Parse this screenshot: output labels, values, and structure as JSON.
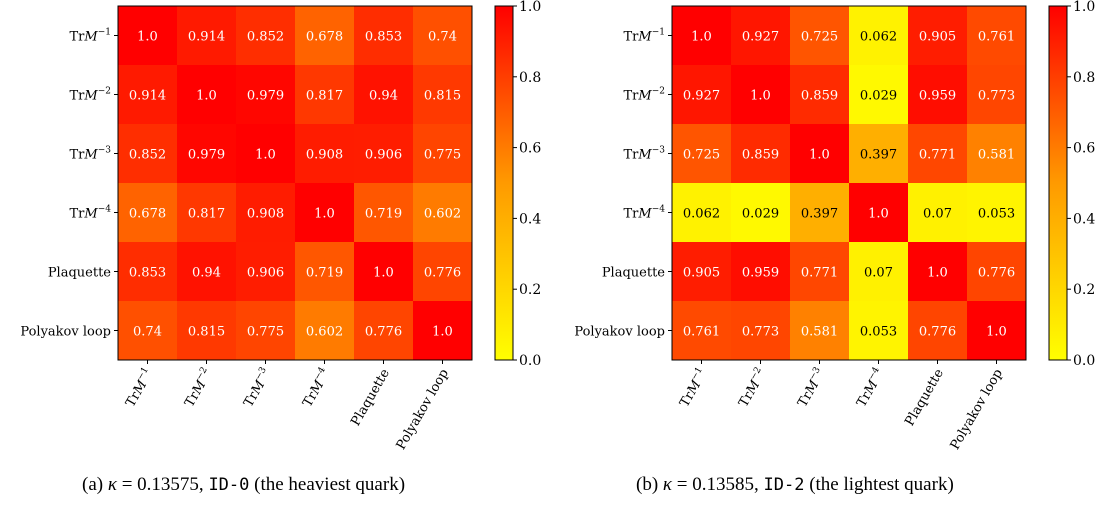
{
  "colors": {
    "low": "#ffff00",
    "mid": "#ff9a00",
    "high": "#ff0000"
  },
  "chart_data": [
    {
      "type": "heatmap",
      "labels": [
        "TrM^-1",
        "TrM^-2",
        "TrM^-3",
        "TrM^-4",
        "Plaquette",
        "Polyakov loop"
      ],
      "values": [
        [
          1.0,
          0.914,
          0.852,
          0.678,
          0.853,
          0.74
        ],
        [
          0.914,
          1.0,
          0.979,
          0.817,
          0.94,
          0.815
        ],
        [
          0.852,
          0.979,
          1.0,
          0.908,
          0.906,
          0.775
        ],
        [
          0.678,
          0.817,
          0.908,
          1.0,
          0.719,
          0.602
        ],
        [
          0.853,
          0.94,
          0.906,
          0.719,
          1.0,
          0.776
        ],
        [
          0.74,
          0.815,
          0.775,
          0.602,
          0.776,
          1.0
        ]
      ],
      "cell_labels": [
        [
          "1.0",
          "0.914",
          "0.852",
          "0.678",
          "0.853",
          "0.74"
        ],
        [
          "0.914",
          "1.0",
          "0.979",
          "0.817",
          "0.94",
          "0.815"
        ],
        [
          "0.852",
          "0.979",
          "1.0",
          "0.908",
          "0.906",
          "0.775"
        ],
        [
          "0.678",
          "0.817",
          "0.908",
          "1.0",
          "0.719",
          "0.602"
        ],
        [
          "0.853",
          "0.94",
          "0.906",
          "0.719",
          "1.0",
          "0.776"
        ],
        [
          "0.74",
          "0.815",
          "0.775",
          "0.602",
          "0.776",
          "1.0"
        ]
      ],
      "colorbar": {
        "range": [
          0.0,
          1.0
        ],
        "ticks": [
          "0.0",
          "0.2",
          "0.4",
          "0.6",
          "0.8",
          "1.0"
        ]
      },
      "caption": {
        "prefix": "(a)",
        "kappa_value": "= 0.13575,",
        "id": "ID-0",
        "suffix": "(the heaviest quark)"
      }
    },
    {
      "type": "heatmap",
      "labels": [
        "TrM^-1",
        "TrM^-2",
        "TrM^-3",
        "TrM^-4",
        "Plaquette",
        "Polyakov loop"
      ],
      "values": [
        [
          1.0,
          0.927,
          0.725,
          0.062,
          0.905,
          0.761
        ],
        [
          0.927,
          1.0,
          0.859,
          0.029,
          0.959,
          0.773
        ],
        [
          0.725,
          0.859,
          1.0,
          0.397,
          0.771,
          0.581
        ],
        [
          0.062,
          0.029,
          0.397,
          1.0,
          0.07,
          0.053
        ],
        [
          0.905,
          0.959,
          0.771,
          0.07,
          1.0,
          0.776
        ],
        [
          0.761,
          0.773,
          0.581,
          0.053,
          0.776,
          1.0
        ]
      ],
      "cell_labels": [
        [
          "1.0",
          "0.927",
          "0.725",
          "0.062",
          "0.905",
          "0.761"
        ],
        [
          "0.927",
          "1.0",
          "0.859",
          "0.029",
          "0.959",
          "0.773"
        ],
        [
          "0.725",
          "0.859",
          "1.0",
          "0.397",
          "0.771",
          "0.581"
        ],
        [
          "0.062",
          "0.029",
          "0.397",
          "1.0",
          "0.07",
          "0.053"
        ],
        [
          "0.905",
          "0.959",
          "0.771",
          "0.07",
          "1.0",
          "0.776"
        ],
        [
          "0.761",
          "0.773",
          "0.581",
          "0.053",
          "0.776",
          "1.0"
        ]
      ],
      "colorbar": {
        "range": [
          0.0,
          1.0
        ],
        "ticks": [
          "0.0",
          "0.2",
          "0.4",
          "0.6",
          "0.8",
          "1.0"
        ]
      },
      "caption": {
        "prefix": "(b)",
        "kappa_value": "= 0.13585,",
        "id": "ID-2",
        "suffix": "(the lightest quark)"
      }
    }
  ]
}
